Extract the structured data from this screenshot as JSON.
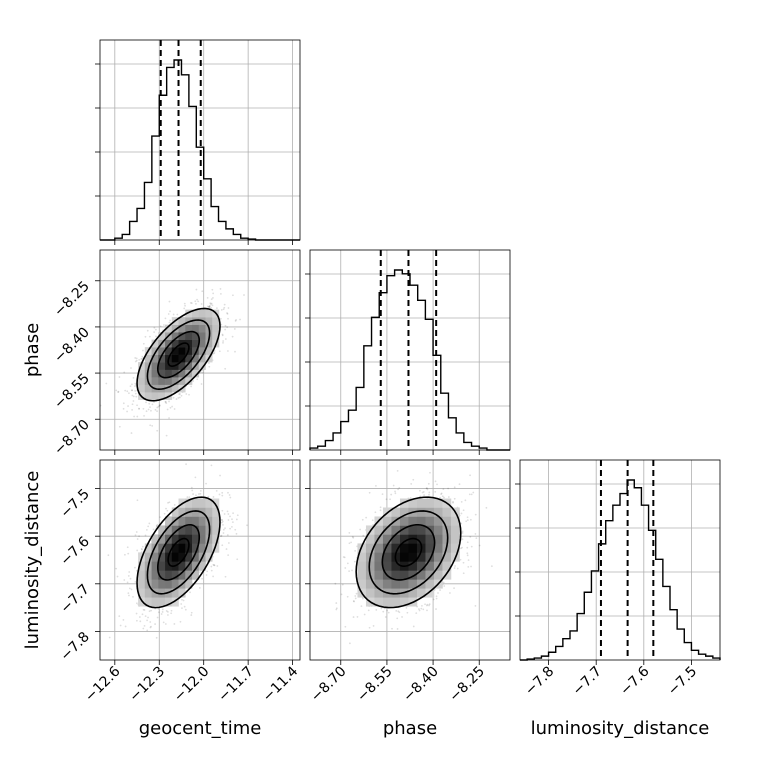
{
  "chart_data": {
    "type": "corner",
    "parameters": [
      "geocent_time",
      "phase",
      "luminosity_distance"
    ],
    "axis_labels": {
      "geocent_time": "geocent_time",
      "phase": "phase",
      "luminosity_distance": "luminosity_distance"
    },
    "ranges": {
      "geocent_time": [
        -12.7,
        -11.35
      ],
      "phase": [
        -8.8,
        -8.15
      ],
      "luminosity_distance": [
        -7.86,
        -7.44
      ]
    },
    "ticks": {
      "geocent_time": [
        -12.6,
        -12.3,
        -12.0,
        -11.7,
        -11.4
      ],
      "phase": [
        -8.7,
        -8.55,
        -8.4,
        -8.25
      ],
      "luminosity_distance": [
        -7.8,
        -7.7,
        -7.6,
        -7.5
      ]
    },
    "tick_labels": {
      "geocent_time": [
        "−12.6",
        "−12.3",
        "−12.0",
        "−11.7",
        "−11.4"
      ],
      "phase": [
        "−8.70",
        "−8.55",
        "−8.40",
        "−8.25"
      ],
      "luminosity_distance": [
        "−7.8",
        "−7.7",
        "−7.6",
        "−7.5"
      ]
    },
    "quantiles": {
      "geocent_time": [
        -12.29,
        -12.17,
        -12.02
      ],
      "phase": [
        -8.57,
        -8.48,
        -8.39
      ],
      "luminosity_distance": [
        -7.69,
        -7.634,
        -7.58
      ]
    },
    "histograms": {
      "geocent_time": {
        "edges": [
          -12.7,
          -12.65,
          -12.6,
          -12.55,
          -12.5,
          -12.45,
          -12.4,
          -12.35,
          -12.3,
          -12.25,
          -12.2,
          -12.15,
          -12.1,
          -12.05,
          -12.0,
          -11.95,
          -11.9,
          -11.85,
          -11.8,
          -11.75,
          -11.7,
          -11.65,
          -11.6,
          -11.55,
          -11.5,
          -11.45,
          -11.4,
          -11.35
        ],
        "counts": [
          0,
          0,
          0.01,
          0.03,
          0.1,
          0.17,
          0.31,
          0.56,
          0.78,
          0.93,
          0.97,
          0.89,
          0.72,
          0.5,
          0.33,
          0.18,
          0.1,
          0.06,
          0.03,
          0.01,
          0.005,
          0,
          0,
          0,
          0,
          0,
          0
        ]
      },
      "phase": {
        "edges": [
          -8.8,
          -8.775,
          -8.75,
          -8.725,
          -8.7,
          -8.675,
          -8.65,
          -8.625,
          -8.6,
          -8.575,
          -8.55,
          -8.525,
          -8.5,
          -8.475,
          -8.45,
          -8.425,
          -8.4,
          -8.375,
          -8.35,
          -8.325,
          -8.3,
          -8.275,
          -8.25,
          -8.225,
          -8.2,
          -8.175,
          -8.15
        ],
        "counts": [
          0.01,
          0.02,
          0.05,
          0.09,
          0.15,
          0.21,
          0.33,
          0.55,
          0.7,
          0.83,
          0.92,
          0.95,
          0.93,
          0.87,
          0.79,
          0.69,
          0.5,
          0.3,
          0.17,
          0.09,
          0.04,
          0.02,
          0.01,
          0,
          0,
          0
        ]
      },
      "luminosity_distance": {
        "edges": [
          -7.86,
          -7.845,
          -7.83,
          -7.815,
          -7.8,
          -7.785,
          -7.77,
          -7.755,
          -7.74,
          -7.725,
          -7.71,
          -7.695,
          -7.68,
          -7.665,
          -7.65,
          -7.635,
          -7.62,
          -7.605,
          -7.59,
          -7.575,
          -7.56,
          -7.545,
          -7.53,
          -7.515,
          -7.5,
          -7.485,
          -7.47,
          -7.455,
          -7.44
        ],
        "counts": [
          0,
          0.005,
          0.01,
          0.02,
          0.04,
          0.07,
          0.11,
          0.15,
          0.24,
          0.35,
          0.46,
          0.6,
          0.72,
          0.8,
          0.86,
          0.93,
          0.89,
          0.8,
          0.67,
          0.52,
          0.38,
          0.26,
          0.16,
          0.09,
          0.05,
          0.03,
          0.02,
          0.01
        ]
      }
    },
    "joint": {
      "phase_vs_geocent_time": {
        "mean": [
          -12.17,
          -8.49
        ],
        "sd": [
          0.14,
          0.075
        ],
        "corr": 0.62
      },
      "luminosity_distance_vs_geocent_time": {
        "mean": [
          -12.17,
          -7.634
        ],
        "sd": [
          0.14,
          0.058
        ],
        "corr": 0.55
      },
      "luminosity_distance_vs_phase": {
        "mean": [
          -8.48,
          -7.634
        ],
        "sd": [
          0.085,
          0.058
        ],
        "corr": 0.35
      }
    },
    "contour_levels_sigma": [
      0.5,
      1.0,
      1.5,
      2.0
    ],
    "grid": true,
    "quantile_style": "dashed"
  }
}
